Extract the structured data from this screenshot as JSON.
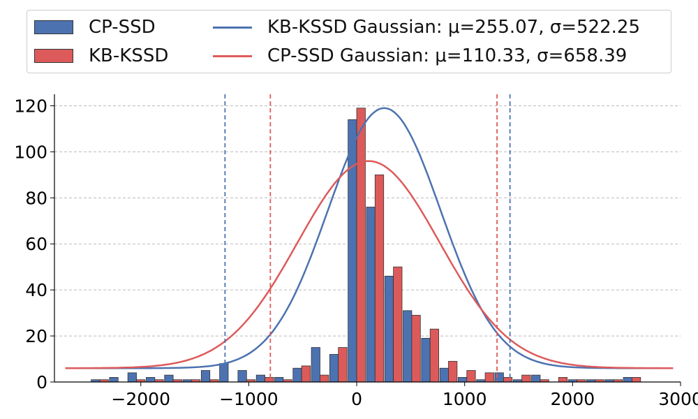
{
  "chart_data": {
    "type": "bar",
    "title": "",
    "xlabel": "",
    "ylabel": "",
    "xlim": [
      -2800,
      3000
    ],
    "ylim": [
      0,
      125
    ],
    "xticks": [
      -2000,
      -1000,
      0,
      1000,
      2000,
      3000
    ],
    "xtick_labels": [
      "−2000",
      "−1000",
      "0",
      "1000",
      "2000",
      "3000"
    ],
    "yticks": [
      0,
      20,
      40,
      60,
      80,
      100,
      120
    ],
    "grid": "y-dashed",
    "legend_position": "top",
    "bin_width": 170,
    "bin_centers": [
      -2380,
      -2210,
      -2040,
      -1870,
      -1700,
      -1530,
      -1360,
      -1190,
      -1020,
      -850,
      -680,
      -510,
      -340,
      -170,
      0,
      170,
      340,
      510,
      680,
      850,
      1020,
      1190,
      1360,
      1530,
      1700,
      1870,
      2040,
      2210,
      2380,
      2550
    ],
    "series": [
      {
        "name": "CP-SSD",
        "color": "#4c72b0",
        "values": [
          1,
          2,
          4,
          2,
          3,
          1,
          5,
          8,
          5,
          3,
          2,
          6,
          15,
          12,
          114,
          76,
          46,
          31,
          19,
          6,
          2,
          1,
          4,
          1,
          3,
          0,
          1,
          1,
          1,
          2
        ]
      },
      {
        "name": "KB-KSSD",
        "color": "#dd5a5a",
        "values": [
          1,
          0,
          1,
          1,
          1,
          1,
          1,
          0,
          1,
          2,
          1,
          7,
          3,
          15,
          119,
          90,
          50,
          29,
          23,
          9,
          5,
          4,
          2,
          3,
          1,
          2,
          1,
          1,
          1,
          2
        ]
      }
    ],
    "curves": [
      {
        "name": "KB-KSSD Gaussian: μ=255.07, σ=522.25",
        "color": "#4c72b0",
        "mu": 255.07,
        "sigma": 522.25,
        "peak": 119,
        "baseline": 6,
        "x_range": [
          -2700,
          2930
        ],
        "bounds": [
          -1220,
          1420
        ]
      },
      {
        "name": "CP-SSD Gaussian: μ=110.33, σ=658.39",
        "color": "#dd5a5a",
        "mu": 110.33,
        "sigma": 658.39,
        "peak": 96,
        "baseline": 6,
        "x_range": [
          -2700,
          2930
        ],
        "bounds": [
          -800,
          1300
        ]
      }
    ]
  }
}
